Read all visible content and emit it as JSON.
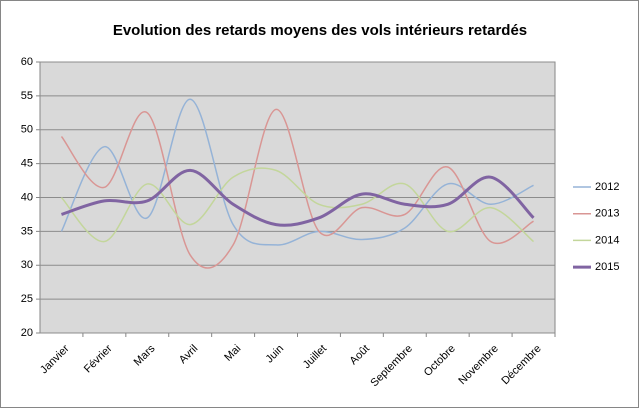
{
  "chart_data": {
    "type": "line",
    "smooth": true,
    "title": "Evolution des retards moyens des vols intérieurs retardés",
    "categories": [
      "Janvier",
      "Février",
      "Mars",
      "Avril",
      "Mai",
      "Juin",
      "Juillet",
      "Août",
      "Septembre",
      "Octobre",
      "Novembre",
      "Décembre"
    ],
    "series": [
      {
        "name": "2012",
        "color": "#95b3d7",
        "line_width": 1.5,
        "values": [
          35,
          47.5,
          37,
          54.5,
          36,
          33,
          35,
          33.8,
          35.5,
          42,
          39,
          41.8
        ]
      },
      {
        "name": "2013",
        "color": "#d99694",
        "line_width": 1.5,
        "values": [
          49,
          41.5,
          52.5,
          31.5,
          33,
          53,
          35,
          38.5,
          37.5,
          44.5,
          33.5,
          36.5
        ]
      },
      {
        "name": "2014",
        "color": "#c3d69b",
        "line_width": 1.5,
        "values": [
          40,
          33.5,
          42,
          36,
          43,
          44,
          39,
          39,
          42,
          35,
          38.5,
          33.5
        ]
      },
      {
        "name": "2015",
        "color": "#8064a2",
        "line_width": 3,
        "values": [
          37.5,
          39.5,
          39.5,
          44,
          39,
          36,
          37,
          40.5,
          39,
          39,
          43,
          37
        ]
      }
    ],
    "ylim": [
      20,
      60
    ],
    "yticks": [
      20,
      25,
      30,
      35,
      40,
      45,
      50,
      55,
      60
    ],
    "grid": true,
    "plot_background": "#d9d9d9",
    "legend": "right"
  }
}
